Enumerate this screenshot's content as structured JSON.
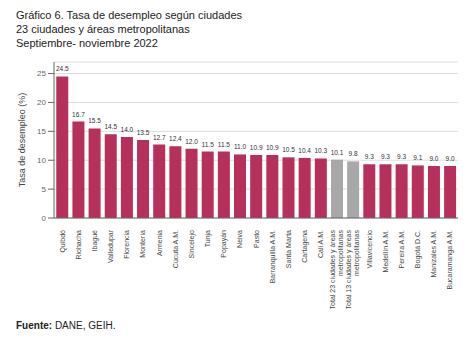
{
  "chart_data": {
    "type": "bar",
    "title": "Gráfico 6. Tasa de desempleo según ciudades",
    "subtitle": [
      "23 ciudades y áreas metropolitanas",
      "Septiembre- noviembre 2022"
    ],
    "y_label": "Tasa de desempleo (%)",
    "source": [
      "Fuente:",
      "DANE, GEIH."
    ],
    "categories": [
      "Quibdó",
      "Riohacha",
      "Ibagué",
      "Valledupar",
      "Florencia",
      "Montería",
      "Armenia",
      "Cúcuta A.M.",
      "Sincelejo",
      "Tunja",
      "Popayán",
      "Neiva",
      "Pasto",
      "Barranquilla A.M.",
      "Santa Marta",
      "Cartagena",
      "Cali A.M.",
      "Total 23 ciudades y áreas\nmetropolitanas",
      "Total 13 ciudades y áreas\nmetropolitanas",
      "Villavicencio",
      "Medellín A.M.",
      "Pereira A.M.",
      "Bogotá D.C.",
      "Manizales A.M.",
      "Bucaramanga A.M."
    ],
    "values": [
      24.5,
      16.7,
      15.5,
      14.5,
      14.0,
      13.5,
      12.7,
      12.4,
      12.0,
      11.5,
      11.5,
      11.0,
      10.9,
      10.9,
      10.5,
      10.4,
      10.3,
      10.1,
      9.8,
      9.3,
      9.3,
      9.3,
      9.1,
      9.0,
      9.0
    ],
    "value_labels": [
      "24.5",
      "16.7",
      "15.5",
      "14.5",
      "14.0",
      "13.5",
      "12.7",
      "12.4",
      "12.0",
      "11.5",
      "11.5",
      "11.0",
      "10.9",
      "10.9",
      "10.5",
      "10.4",
      "10.3",
      "10.1",
      "9.8",
      "9.3",
      "9.3",
      "9.3",
      "9.1",
      "9.0",
      "9.0"
    ],
    "colors": [
      "#b5305a",
      "#b5305a",
      "#b5305a",
      "#b5305a",
      "#b5305a",
      "#b5305a",
      "#b5305a",
      "#b5305a",
      "#b5305a",
      "#b5305a",
      "#b5305a",
      "#b5305a",
      "#b5305a",
      "#b5305a",
      "#b5305a",
      "#b5305a",
      "#b5305a",
      "#a8a8a8",
      "#a8a8a8",
      "#b5305a",
      "#b5305a",
      "#b5305a",
      "#b5305a",
      "#b5305a",
      "#b5305a"
    ],
    "ylim": [
      0,
      27
    ],
    "yticks": [
      0,
      5,
      10,
      15,
      20,
      25
    ],
    "grid": true,
    "data_labels": true
  }
}
